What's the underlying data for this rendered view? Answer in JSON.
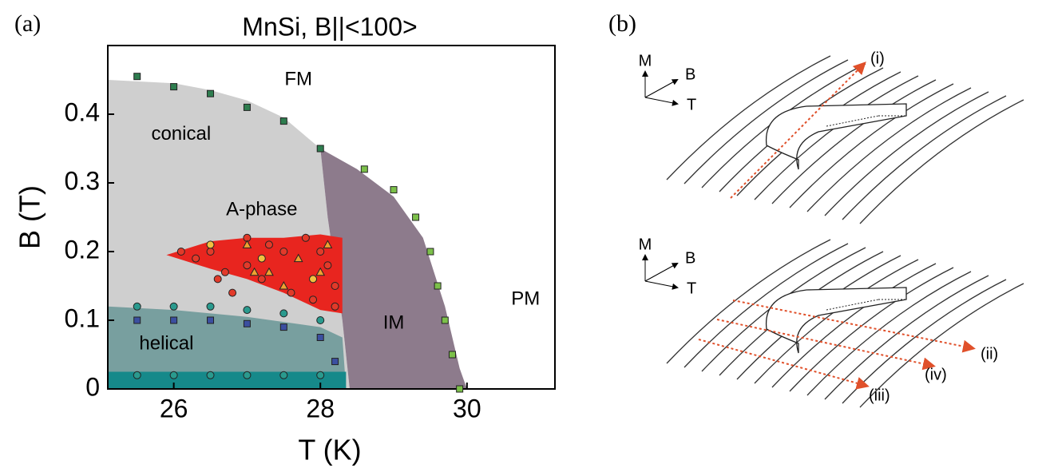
{
  "panel_a_label": "(a)",
  "panel_b_label": "(b)",
  "chart_data": {
    "type": "phase-diagram",
    "title": "MnSi, B||<100>",
    "x_label": "T (K)",
    "y_label": "B (T)",
    "xlim": [
      25.1,
      31.2
    ],
    "ylim": [
      0,
      0.5
    ],
    "xticks": [
      26,
      28,
      30
    ],
    "yticks": [
      0,
      0.1,
      0.2,
      0.3,
      0.4
    ],
    "regions": [
      {
        "color": "#cfcfcf",
        "x": [
          25.1,
          26,
          26.5,
          27,
          27.5,
          28,
          28.1,
          28.3,
          28.4,
          25.1
        ],
        "values": [
          0.45,
          0.445,
          0.435,
          0.42,
          0.395,
          0.35,
          0.25,
          0.1,
          0,
          0
        ]
      },
      {
        "color": "#8d7b8c",
        "x": [
          28,
          28.5,
          29,
          29.4,
          29.7,
          29.9,
          30,
          28.4,
          28.3,
          28.1
        ],
        "values": [
          0.35,
          0.32,
          0.28,
          0.22,
          0.12,
          0.03,
          0,
          0,
          0.1,
          0.25
        ]
      },
      {
        "color": "#789f9f",
        "x": [
          25.1,
          26,
          27,
          28,
          28.3,
          28.35,
          25.1
        ],
        "values": [
          0.12,
          0.115,
          0.105,
          0.09,
          0.075,
          0,
          0
        ]
      },
      {
        "color": "#16898a",
        "x": [
          25.1,
          28.35,
          28.35,
          25.1
        ],
        "values": [
          0.025,
          0.025,
          0,
          0
        ]
      },
      {
        "color": "#e8251f",
        "x": [
          25.9,
          26.5,
          27,
          27.5,
          28,
          28.3,
          28.3,
          28,
          27.5,
          27,
          26.5
        ],
        "values": [
          0.195,
          0.215,
          0.22,
          0.22,
          0.225,
          0.22,
          0.11,
          0.115,
          0.14,
          0.16,
          0.175
        ]
      }
    ],
    "series": [
      {
        "marker": "square",
        "color": "#2e7d4f",
        "x": [
          25.5,
          26,
          26.5,
          27,
          27.5,
          28
        ],
        "values": [
          0.455,
          0.44,
          0.43,
          0.41,
          0.39,
          0.35
        ]
      },
      {
        "marker": "square",
        "color": "#7cc04a",
        "x": [
          28.6,
          29,
          29.3,
          29.5,
          29.6,
          29.7,
          29.8,
          29.9
        ],
        "values": [
          0.32,
          0.29,
          0.25,
          0.2,
          0.15,
          0.1,
          0.05,
          0
        ]
      },
      {
        "marker": "circle",
        "color": "#2a9a8e",
        "x": [
          25.5,
          26,
          26.5,
          27,
          27.5,
          28
        ],
        "values": [
          0.12,
          0.12,
          0.12,
          0.115,
          0.11,
          0.1
        ]
      },
      {
        "marker": "circle",
        "color": "#2a9a8e",
        "x": [
          25.5,
          26,
          26.5,
          27,
          27.5,
          28
        ],
        "values": [
          0.02,
          0.02,
          0.02,
          0.02,
          0.02,
          0.02
        ]
      },
      {
        "marker": "square",
        "color": "#3b4fa0",
        "x": [
          25.5,
          26,
          26.5,
          27,
          27.5,
          28,
          28.2
        ],
        "values": [
          0.1,
          0.1,
          0.1,
          0.095,
          0.09,
          0.075,
          0.04
        ]
      },
      {
        "marker": "circle",
        "color": "#e23a2a",
        "x": [
          26.1,
          26.3,
          26.5,
          26.7,
          27,
          27,
          27.3,
          27.5,
          27.8,
          28,
          28.1,
          28.2,
          28.2,
          27.9,
          27.6,
          27.2,
          26.8,
          26.6
        ],
        "values": [
          0.2,
          0.19,
          0.2,
          0.17,
          0.22,
          0.18,
          0.21,
          0.2,
          0.22,
          0.2,
          0.18,
          0.15,
          0.12,
          0.13,
          0.14,
          0.16,
          0.14,
          0.16
        ]
      },
      {
        "marker": "triangle",
        "color": "#f0a030",
        "x": [
          27,
          27.3,
          27.7,
          28,
          27.5,
          27.1,
          28.1
        ],
        "values": [
          0.21,
          0.17,
          0.19,
          0.17,
          0.15,
          0.17,
          0.21
        ]
      },
      {
        "marker": "circle",
        "color": "#f2c040",
        "x": [
          26.5,
          27.2,
          27.9
        ],
        "values": [
          0.21,
          0.19,
          0.16
        ]
      }
    ],
    "annotations": [
      {
        "text": "FM",
        "x": 27.7,
        "y": 0.45
      },
      {
        "text": "conical",
        "x": 26.1,
        "y": 0.37
      },
      {
        "text": "A-phase",
        "x": 27.2,
        "y": 0.26
      },
      {
        "text": "IM",
        "x": 29,
        "y": 0.095
      },
      {
        "text": "PM",
        "x": 30.8,
        "y": 0.13
      },
      {
        "text": "helical",
        "x": 25.9,
        "y": 0.065
      }
    ]
  },
  "panel_b": {
    "top": {
      "axes": [
        "M",
        "B",
        "T"
      ],
      "arrows": [
        "(i)"
      ]
    },
    "bottom": {
      "axes": [
        "M",
        "B",
        "T"
      ],
      "arrows": [
        "(ii)",
        "(iv)",
        "(iii)"
      ]
    }
  }
}
